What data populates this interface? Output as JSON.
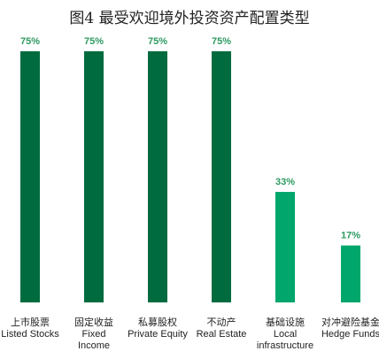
{
  "chart_data": {
    "type": "bar",
    "title": "图4  最受欢迎境外投资资产配置类型",
    "unit": "%",
    "categories": [
      {
        "zh": "上市股票",
        "en": "Listed Stocks"
      },
      {
        "zh": "固定收益",
        "en": "Fixed Income"
      },
      {
        "zh": "私募股权",
        "en": "Private Equity"
      },
      {
        "zh": "不动产",
        "en": "Real Estate"
      },
      {
        "zh": "基础设施",
        "en": "Local infrastructure"
      },
      {
        "zh": "对冲避险基金",
        "en": "Hedge Funds"
      }
    ],
    "values": [
      75,
      75,
      75,
      75,
      33,
      17
    ],
    "data_labels": [
      "75%",
      "75%",
      "75%",
      "75%",
      "33%",
      "17%"
    ],
    "ylim": [
      0,
      75
    ],
    "grid": false,
    "colors": {
      "bar_dark": "#006b3f",
      "bar_light": "#00a66b",
      "label_text": "#2e9a62"
    }
  }
}
